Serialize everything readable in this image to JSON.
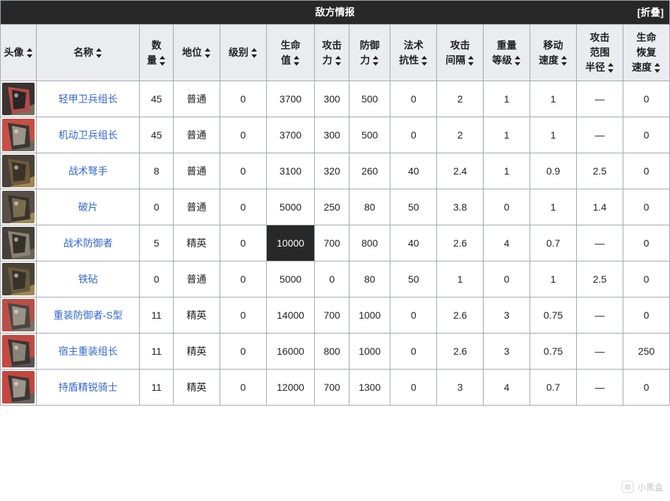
{
  "table": {
    "title": "敌方情报",
    "collapse_label": "[折叠]",
    "link_color": "#3366cc",
    "header_bg": "#eaecf0",
    "title_bg": "#282828",
    "title_fg": "#ffffff",
    "border_color": "#a2a9b1",
    "highlight_bg": "#282828",
    "highlight_fg": "#ffffff",
    "columns": [
      {
        "key": "avatar",
        "label": "头像"
      },
      {
        "key": "name",
        "label": "名称"
      },
      {
        "key": "count",
        "label": "数量",
        "multiline": [
          "数",
          "量"
        ]
      },
      {
        "key": "rank",
        "label": "地位"
      },
      {
        "key": "tier",
        "label": "级别"
      },
      {
        "key": "hp",
        "label": "生命值",
        "multiline": [
          "生命",
          "值"
        ]
      },
      {
        "key": "atk",
        "label": "攻击力",
        "multiline": [
          "攻击",
          "力"
        ]
      },
      {
        "key": "def",
        "label": "防御力",
        "multiline": [
          "防御",
          "力"
        ]
      },
      {
        "key": "res",
        "label": "法术抗性",
        "multiline": [
          "法术",
          "抗性"
        ]
      },
      {
        "key": "atkint",
        "label": "攻击间隔",
        "multiline": [
          "攻击",
          "间隔"
        ]
      },
      {
        "key": "weight",
        "label": "重量等级",
        "multiline": [
          "重量",
          "等级"
        ]
      },
      {
        "key": "mspd",
        "label": "移动速度",
        "multiline": [
          "移动",
          "速度"
        ]
      },
      {
        "key": "range",
        "label": "攻击范围半径",
        "multiline": [
          "攻击",
          "范围",
          "半径"
        ]
      },
      {
        "key": "regen",
        "label": "生命恢复速度",
        "multiline": [
          "生命",
          "恢复",
          "速度"
        ]
      }
    ],
    "rows": [
      {
        "avatar_colors": [
          "#7a6f5e",
          "#3a3330",
          "#b44a4a",
          "#2a2624"
        ],
        "name": "轻甲卫兵组长",
        "count": "45",
        "rank": "普通",
        "tier": "0",
        "hp": "3700",
        "atk": "300",
        "def": "500",
        "res": "0",
        "atkint": "2",
        "weight": "1",
        "mspd": "1",
        "range": "—",
        "regen": "0"
      },
      {
        "avatar_colors": [
          "#6d6a5a",
          "#c74f44",
          "#3a3836",
          "#9c9486"
        ],
        "name": "机动卫兵组长",
        "count": "45",
        "rank": "普通",
        "tier": "0",
        "hp": "3700",
        "atk": "300",
        "def": "500",
        "res": "0",
        "atkint": "2",
        "weight": "1",
        "mspd": "1",
        "range": "—",
        "regen": "0"
      },
      {
        "avatar_colors": [
          "#a28853",
          "#4a4238",
          "#6e5b38",
          "#3a3228"
        ],
        "name": "战术弩手",
        "count": "8",
        "rank": "普通",
        "tier": "0",
        "hp": "3100",
        "atk": "320",
        "def": "260",
        "res": "40",
        "atkint": "2.4",
        "weight": "1",
        "mspd": "0.9",
        "range": "2.5",
        "regen": "0"
      },
      {
        "avatar_colors": [
          "#9e8a58",
          "#5a5048",
          "#3a342e",
          "#7a6c50"
        ],
        "name": "破片",
        "count": "0",
        "rank": "普通",
        "tier": "0",
        "hp": "5000",
        "atk": "250",
        "def": "80",
        "res": "50",
        "atkint": "3.8",
        "weight": "0",
        "mspd": "1",
        "range": "1.4",
        "regen": "0"
      },
      {
        "avatar_colors": [
          "#6a6256",
          "#454038",
          "#8a8272",
          "#35302a"
        ],
        "name": "战术防御者",
        "count": "5",
        "rank": "精英",
        "tier": "0",
        "hp": "10000",
        "hp_highlight": true,
        "atk": "700",
        "def": "800",
        "res": "40",
        "atkint": "2.6",
        "weight": "4",
        "mspd": "0.7",
        "range": "—",
        "regen": "0"
      },
      {
        "avatar_colors": [
          "#a08654",
          "#4a4438",
          "#6a5c40",
          "#38322a"
        ],
        "name": "铁砧",
        "count": "0",
        "rank": "普通",
        "tier": "0",
        "hp": "5000",
        "atk": "0",
        "def": "80",
        "res": "50",
        "atkint": "1",
        "weight": "0",
        "mspd": "1",
        "range": "2.5",
        "regen": "0"
      },
      {
        "avatar_colors": [
          "#7c746a",
          "#b85048",
          "#4c4640",
          "#9a9286"
        ],
        "name": "重装防御者-S型",
        "count": "11",
        "rank": "精英",
        "tier": "0",
        "hp": "14000",
        "atk": "700",
        "def": "1000",
        "res": "0",
        "atkint": "2.6",
        "weight": "3",
        "mspd": "0.75",
        "range": "—",
        "regen": "0"
      },
      {
        "avatar_colors": [
          "#5a5450",
          "#c24a42",
          "#3a3632",
          "#8a8478"
        ],
        "name": "宿主重装组长",
        "count": "11",
        "rank": "精英",
        "tier": "0",
        "hp": "16000",
        "atk": "800",
        "def": "1000",
        "res": "0",
        "atkint": "2.6",
        "weight": "3",
        "mspd": "0.75",
        "range": "—",
        "regen": "250"
      },
      {
        "avatar_colors": [
          "#6a625a",
          "#c6463e",
          "#3c3834",
          "#9c948a"
        ],
        "name": "持盾精锐骑士",
        "count": "11",
        "rank": "精英",
        "tier": "0",
        "hp": "12000",
        "atk": "700",
        "def": "1300",
        "res": "0",
        "atkint": "3",
        "weight": "4",
        "mspd": "0.7",
        "range": "—",
        "regen": "0"
      }
    ]
  },
  "watermark": {
    "text": "小黑盒"
  }
}
